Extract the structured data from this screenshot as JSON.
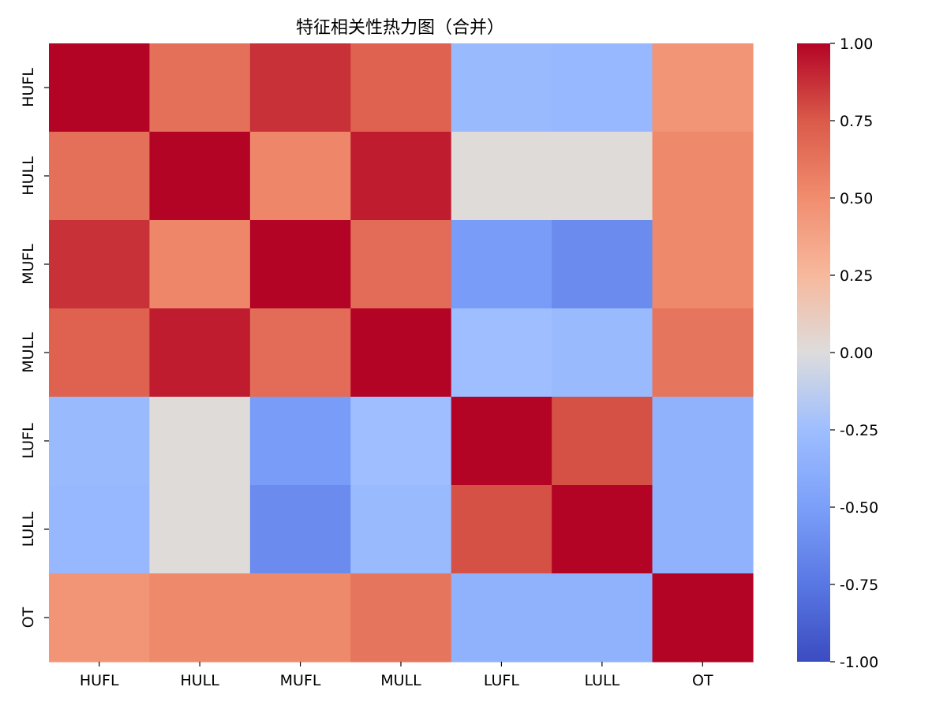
{
  "chart_data": {
    "type": "heatmap",
    "title": "特征相关性热力图（合并）",
    "x_categories": [
      "HUFL",
      "HULL",
      "MUFL",
      "MULL",
      "LUFL",
      "LULL",
      "OT"
    ],
    "y_categories": [
      "HUFL",
      "HULL",
      "MUFL",
      "MULL",
      "LUFL",
      "LULL",
      "OT"
    ],
    "values": [
      [
        1.0,
        0.64,
        0.87,
        0.71,
        -0.28,
        -0.3,
        0.46
      ],
      [
        0.64,
        1.0,
        0.53,
        0.93,
        0.01,
        0.01,
        0.52
      ],
      [
        0.87,
        0.53,
        1.0,
        0.66,
        -0.52,
        -0.62,
        0.52
      ],
      [
        0.71,
        0.93,
        0.66,
        1.0,
        -0.25,
        -0.28,
        0.62
      ],
      [
        -0.28,
        0.01,
        -0.52,
        -0.25,
        1.0,
        0.78,
        -0.35
      ],
      [
        -0.3,
        0.01,
        -0.62,
        -0.28,
        0.78,
        1.0,
        -0.35
      ],
      [
        0.46,
        0.52,
        0.52,
        0.62,
        -0.35,
        -0.35,
        1.0
      ]
    ],
    "colorscale": "coolwarm",
    "vmin": -1.0,
    "vmax": 1.0,
    "colorbar_ticks": [
      "1.00",
      "0.75",
      "0.50",
      "0.25",
      "0.00",
      "-0.25",
      "-0.50",
      "-0.75",
      "-1.00"
    ],
    "grid": false
  }
}
